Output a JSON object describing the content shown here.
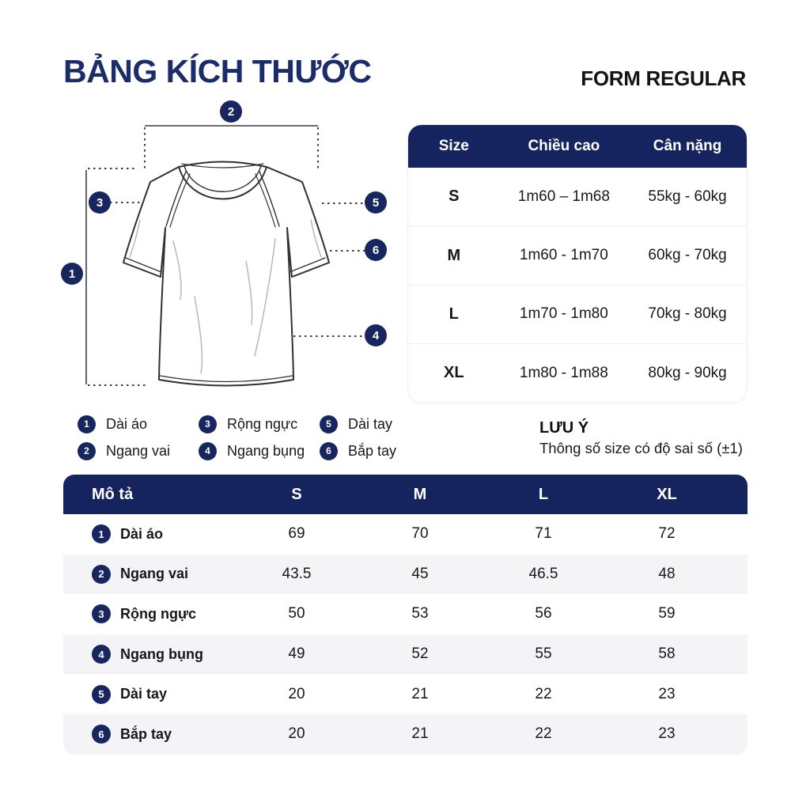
{
  "page": {
    "title": "BẢNG KÍCH THƯỚC",
    "form_label": "FORM REGULAR"
  },
  "colors": {
    "navy_header": "#15245e",
    "navy_badge": "#17265f",
    "title_navy": "#1b2c6b",
    "row_alt_gray": "#f4f4f6"
  },
  "diagram": {
    "markers": [
      {
        "number": "1"
      },
      {
        "number": "2"
      },
      {
        "number": "3"
      },
      {
        "number": "4"
      },
      {
        "number": "5"
      },
      {
        "number": "6"
      }
    ]
  },
  "size_table": {
    "headers": [
      "Size",
      "Chiều cao",
      "Cân nặng"
    ],
    "rows": [
      {
        "size": "S",
        "height": "1m60 – 1m68",
        "weight": "55kg - 60kg"
      },
      {
        "size": "M",
        "height": "1m60 - 1m70",
        "weight": "60kg - 70kg"
      },
      {
        "size": "L",
        "height": "1m70 - 1m80",
        "weight": "70kg - 80kg"
      },
      {
        "size": "XL",
        "height": "1m80 - 1m88",
        "weight": "80kg - 90kg"
      }
    ]
  },
  "note": {
    "title": "LƯU Ý",
    "text": "Thông số size có độ sai số (±1)"
  },
  "legend": {
    "items": [
      {
        "number": "1",
        "label": "Dài áo"
      },
      {
        "number": "2",
        "label": "Ngang vai"
      },
      {
        "number": "3",
        "label": "Rộng ngực"
      },
      {
        "number": "4",
        "label": "Ngang bụng"
      },
      {
        "number": "5",
        "label": "Dài tay"
      },
      {
        "number": "6",
        "label": "Bắp tay"
      }
    ]
  },
  "measure_table": {
    "headers": [
      "Mô tả",
      "S",
      "M",
      "L",
      "XL"
    ],
    "rows": [
      {
        "number": "1",
        "label": "Dài áo",
        "values": [
          "69",
          "70",
          "71",
          "72"
        ]
      },
      {
        "number": "2",
        "label": "Ngang vai",
        "values": [
          "43.5",
          "45",
          "46.5",
          "48"
        ]
      },
      {
        "number": "3",
        "label": "Rộng ngực",
        "values": [
          "50",
          "53",
          "56",
          "59"
        ]
      },
      {
        "number": "4",
        "label": "Ngang bụng",
        "values": [
          "49",
          "52",
          "55",
          "58"
        ]
      },
      {
        "number": "5",
        "label": "Dài tay",
        "values": [
          "20",
          "21",
          "22",
          "23"
        ]
      },
      {
        "number": "6",
        "label": "Bắp tay",
        "values": [
          "20",
          "21",
          "22",
          "23"
        ]
      }
    ]
  }
}
